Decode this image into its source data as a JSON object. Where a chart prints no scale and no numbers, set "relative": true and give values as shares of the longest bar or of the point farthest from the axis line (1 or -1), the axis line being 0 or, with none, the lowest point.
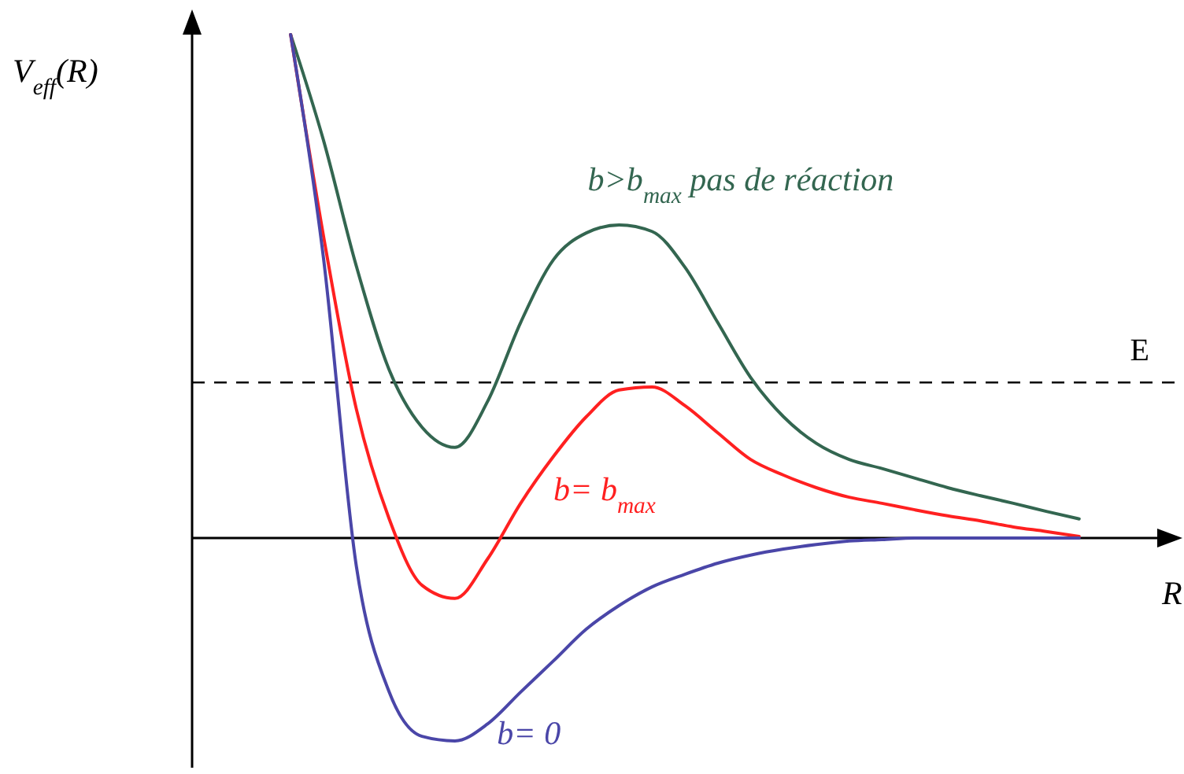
{
  "chart_data": {
    "type": "line",
    "relative": true,
    "xlabel": "R",
    "ylabel": "V$_{eff}$(R)",
    "categories": [
      null,
      null,
      null,
      null,
      null,
      null,
      null,
      null,
      null,
      null,
      null,
      null,
      null,
      null,
      null,
      null,
      null,
      null,
      null,
      null,
      null,
      null,
      null,
      null,
      null,
      null,
      null,
      null,
      null,
      null,
      null
    ],
    "series": [
      {
        "name": "b>b$_{max}$ pas de réaction",
        "color": "#336650",
        "values": [
          null,
          null,
          null,
          1.0,
          0.79,
          0.54,
          0.334,
          0.22,
          0.18,
          0.272,
          0.428,
          0.553,
          0.606,
          0.622,
          0.609,
          0.538,
          0.428,
          0.319,
          0.241,
          0.188,
          0.156,
          0.138,
          0.119,
          0.1,
          0.084,
          0.069,
          0.053,
          0.038,
          null,
          null,
          null
        ]
      },
      {
        "name": "b= b$_{max}$",
        "color": "#ff2020",
        "values": [
          null,
          null,
          null,
          1.0,
          0.6,
          0.256,
          0.038,
          -0.094,
          -0.12,
          -0.041,
          0.069,
          0.162,
          0.241,
          0.294,
          0.3,
          0.263,
          0.209,
          0.156,
          0.125,
          0.1,
          0.081,
          0.069,
          0.056,
          0.044,
          0.034,
          0.022,
          0.013,
          0.003,
          null,
          null,
          null
        ]
      },
      {
        "name": "b= 0",
        "color": "#4a46a8",
        "values": [
          null,
          null,
          null,
          1.0,
          0.556,
          -0.056,
          -0.306,
          -0.394,
          -0.403,
          -0.369,
          -0.306,
          -0.244,
          -0.181,
          -0.134,
          -0.097,
          -0.072,
          -0.05,
          -0.034,
          -0.022,
          -0.013,
          -0.006,
          -0.003,
          0,
          0,
          0,
          0,
          0,
          0,
          null,
          null,
          null
        ]
      }
    ],
    "ref_lines": [
      {
        "axis": "y",
        "value": 0.309,
        "label": "E",
        "line_style": "dashed"
      }
    ]
  }
}
